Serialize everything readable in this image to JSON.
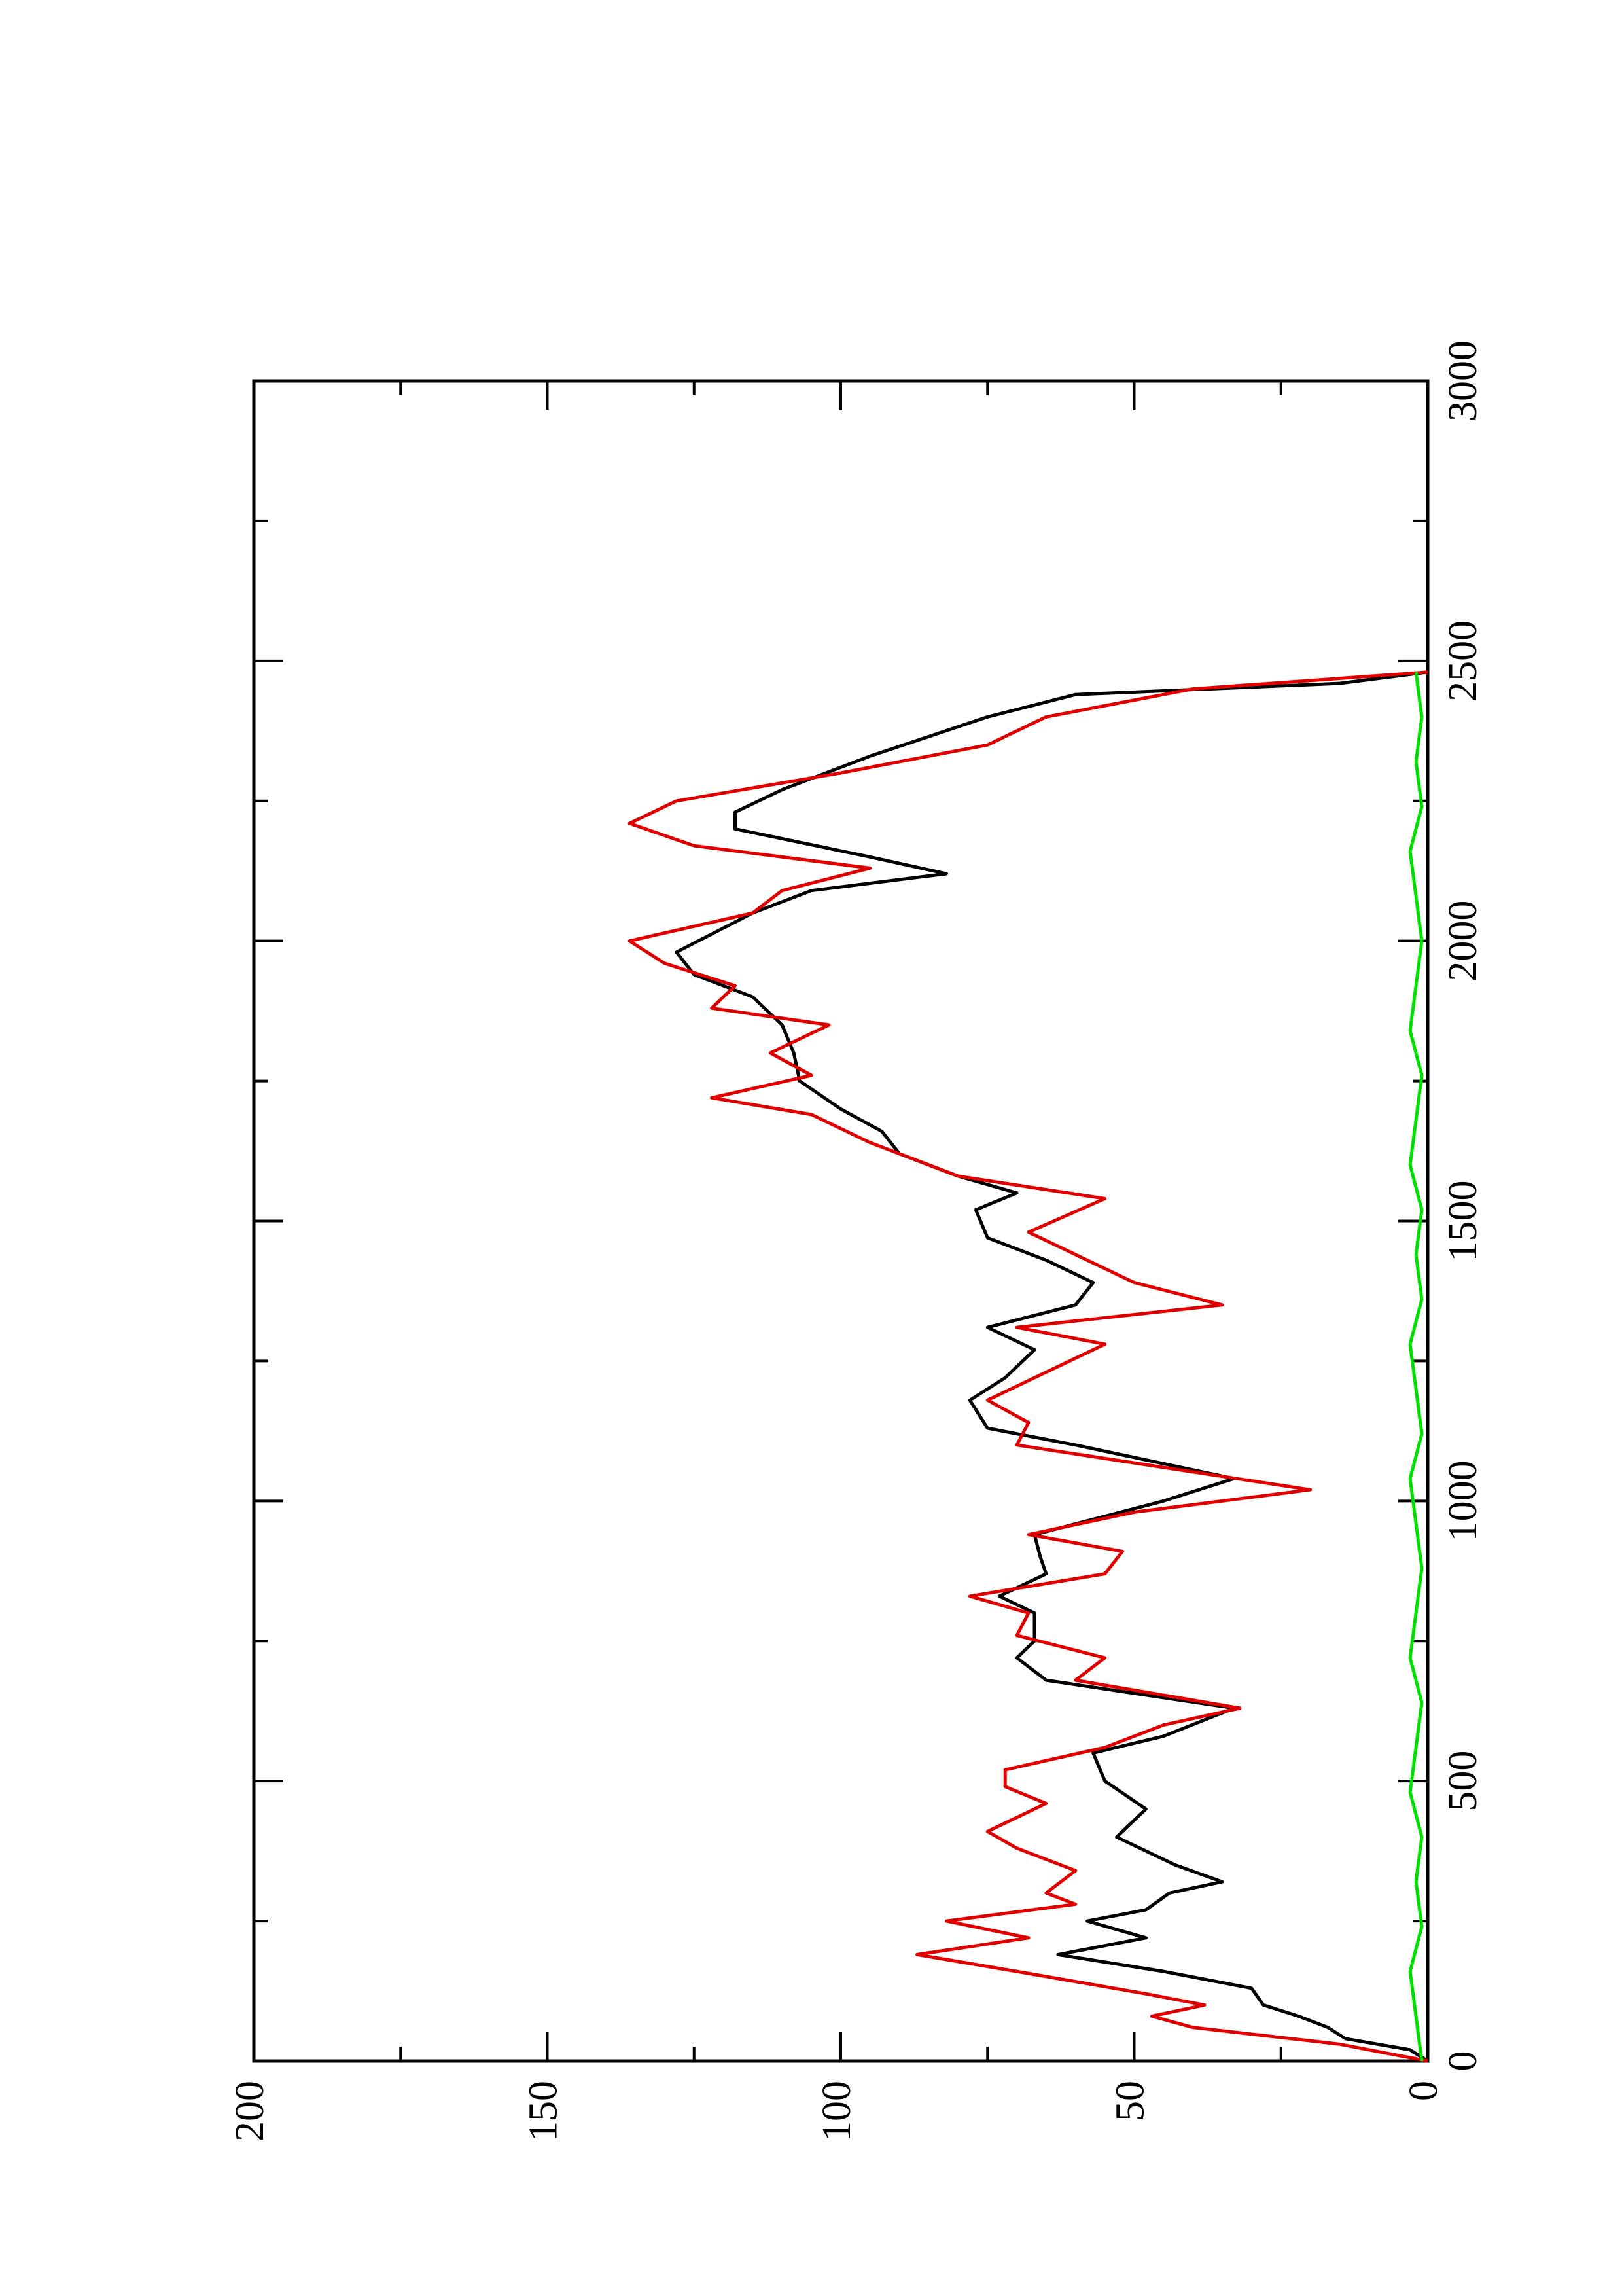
{
  "chart_data": {
    "type": "line",
    "xlim": [
      0,
      3000
    ],
    "xticks": [
      0,
      500,
      1000,
      1500,
      2000,
      2500,
      3000
    ],
    "xminorticks": [
      250,
      750,
      1250,
      1750,
      2250,
      2750
    ],
    "ylim": [
      0,
      200
    ],
    "yticks": [
      0,
      50,
      100,
      150,
      200
    ],
    "yminorticks": [
      25,
      75,
      125,
      175
    ],
    "series": [
      {
        "color": "#000000",
        "x": [
          0,
          20,
          40,
          60,
          80,
          100,
          130,
          160,
          190,
          220,
          250,
          270,
          300,
          320,
          350,
          400,
          450,
          500,
          550,
          580,
          630,
          680,
          720,
          750,
          800,
          830,
          870,
          900,
          940,
          1000,
          1040,
          1100,
          1130,
          1180,
          1220,
          1270,
          1310,
          1350,
          1390,
          1430,
          1470,
          1520,
          1550,
          1580,
          1620,
          1660,
          1700,
          1750,
          1800,
          1850,
          1900,
          1940,
          1980,
          2050,
          2090,
          2120,
          2150,
          2200,
          2230,
          2270,
          2330,
          2400,
          2440,
          2460,
          2480
        ],
        "values": [
          0,
          3,
          14,
          17,
          22,
          28,
          30,
          45,
          63,
          48,
          58,
          48,
          44,
          35,
          43,
          53,
          48,
          55,
          57,
          45,
          33,
          65,
          70,
          67,
          67,
          73,
          65,
          66,
          67,
          45,
          33,
          60,
          75,
          78,
          72,
          67,
          75,
          60,
          57,
          65,
          75,
          77,
          70,
          80,
          90,
          93,
          100,
          107,
          108,
          110,
          115,
          125,
          128,
          115,
          105,
          82,
          95,
          118,
          118,
          110,
          95,
          75,
          60,
          15,
          0
        ]
      },
      {
        "color": "#e00000",
        "x": [
          0,
          30,
          60,
          80,
          100,
          120,
          160,
          190,
          220,
          250,
          280,
          300,
          340,
          380,
          410,
          460,
          490,
          520,
          560,
          600,
          630,
          680,
          720,
          760,
          800,
          830,
          870,
          910,
          940,
          980,
          1020,
          1060,
          1100,
          1140,
          1180,
          1230,
          1280,
          1310,
          1350,
          1390,
          1430,
          1480,
          1540,
          1580,
          1640,
          1690,
          1720,
          1760,
          1800,
          1850,
          1880,
          1920,
          1960,
          2000,
          2050,
          2090,
          2130,
          2170,
          2210,
          2250,
          2300,
          2350,
          2400,
          2450,
          2480
        ],
        "values": [
          0,
          15,
          40,
          47,
          38,
          48,
          70,
          87,
          68,
          82,
          60,
          65,
          60,
          70,
          75,
          65,
          72,
          72,
          55,
          45,
          32,
          60,
          55,
          70,
          68,
          78,
          55,
          52,
          68,
          50,
          20,
          45,
          70,
          68,
          75,
          65,
          55,
          70,
          35,
          50,
          58,
          68,
          55,
          80,
          95,
          105,
          122,
          105,
          112,
          102,
          122,
          118,
          130,
          136,
          115,
          110,
          95,
          125,
          136,
          128,
          100,
          75,
          65,
          40,
          0
        ]
      },
      {
        "color": "#00e000",
        "x": [
          0,
          80,
          160,
          240,
          320,
          400,
          480,
          560,
          640,
          720,
          800,
          880,
          960,
          1040,
          1120,
          1200,
          1280,
          1360,
          1440,
          1520,
          1600,
          1680,
          1760,
          1840,
          1920,
          2000,
          2080,
          2160,
          2240,
          2320,
          2400,
          2480
        ],
        "values": [
          1,
          2,
          3,
          1,
          2,
          1,
          3,
          2,
          1,
          3,
          2,
          1,
          2,
          3,
          1,
          2,
          3,
          1,
          2,
          1,
          3,
          2,
          1,
          3,
          2,
          1,
          2,
          3,
          1,
          2,
          1,
          2
        ]
      }
    ]
  }
}
